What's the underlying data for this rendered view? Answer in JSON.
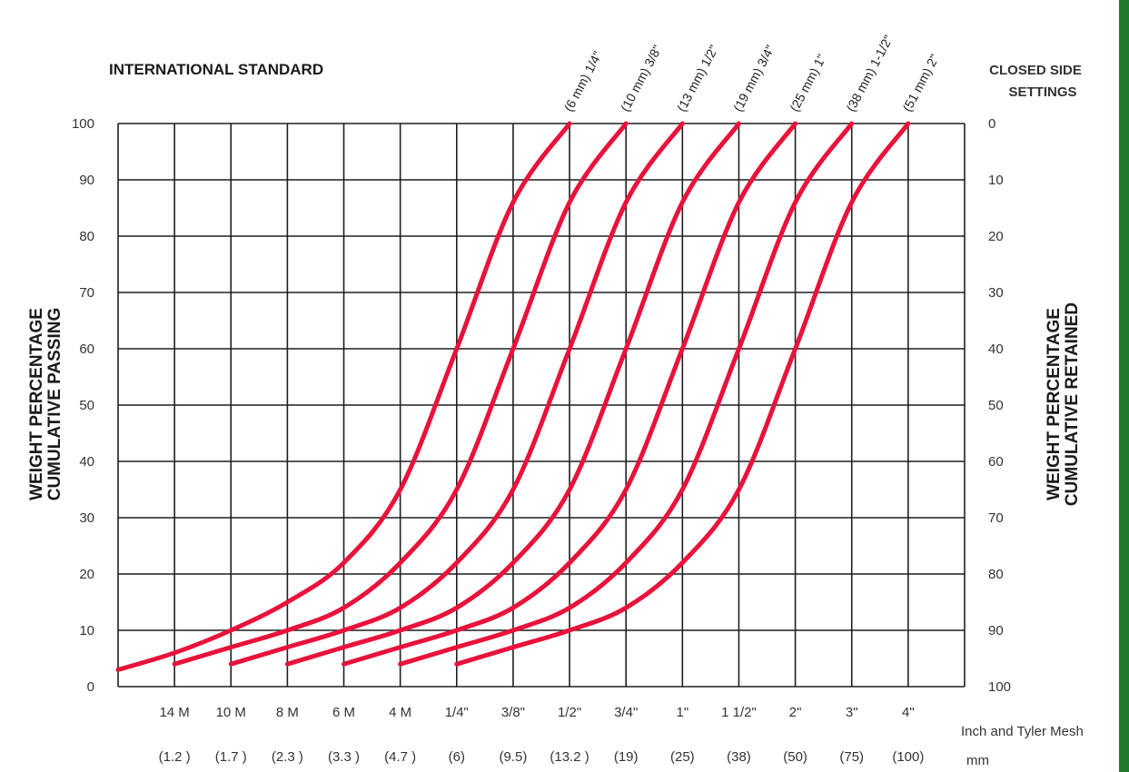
{
  "chart_data": {
    "type": "line",
    "title": "INTERNATIONAL STANDARD",
    "right_title": [
      "CLOSED SIDE",
      "SETTINGS"
    ],
    "ylabel": [
      "WEIGHT PERCENTAGE",
      "CUMULATIVE PASSING"
    ],
    "ylabel_right": [
      "WEIGHT PERCENTAGE",
      "CUMULATIVE RETAINED"
    ],
    "ylim": [
      0,
      100
    ],
    "y_ticks": [
      0,
      10,
      20,
      30,
      40,
      50,
      60,
      70,
      80,
      90,
      100
    ],
    "y_ticks_right": [
      100,
      90,
      80,
      70,
      60,
      50,
      40,
      30,
      20,
      10,
      0
    ],
    "x_tick_labels": [
      "14 M",
      "10 M",
      "8 M",
      "6 M",
      "4 M",
      "1/4\"",
      "3/8\"",
      "1/2\"",
      "3/4\"",
      "1\"",
      "1 1/2\"",
      "2\"",
      "3\"",
      "4\""
    ],
    "x_tick_labels_mm": [
      "(1.2 )",
      "(1.7 )",
      "(2.3 )",
      "(3.3 )",
      "(4.7 )",
      "(6)",
      "(9.5)",
      "(13.2 )",
      "(19)",
      "(25)",
      "(38)",
      "(50)",
      "(75)",
      "(100)"
    ],
    "x_unit_inch": "Inch and Tyler Mesh",
    "x_unit_mm": "mm",
    "grid": true,
    "series": [
      {
        "name": "(6 mm) 1/4\"",
        "x": [
          0,
          1,
          2,
          3,
          4,
          5,
          6,
          7,
          8
        ],
        "y": [
          3,
          6,
          10,
          15,
          22,
          35,
          60,
          86,
          100
        ]
      },
      {
        "name": "(10 mm) 3/8\"",
        "x": [
          1,
          2,
          3,
          4,
          5,
          6,
          7,
          8,
          9
        ],
        "y": [
          4,
          7,
          10,
          14,
          22,
          35,
          60,
          86,
          100
        ]
      },
      {
        "name": "(13 mm) 1/2\"",
        "x": [
          2,
          3,
          4,
          5,
          6,
          7,
          8,
          9,
          10
        ],
        "y": [
          4,
          7,
          10,
          14,
          22,
          35,
          60,
          86,
          100
        ]
      },
      {
        "name": "(19 mm) 3/4\"",
        "x": [
          3,
          4,
          5,
          6,
          7,
          8,
          9,
          10,
          11
        ],
        "y": [
          4,
          7,
          10,
          14,
          22,
          35,
          60,
          86,
          100
        ]
      },
      {
        "name": "(25 mm) 1\"",
        "x": [
          4,
          5,
          6,
          7,
          8,
          9,
          10,
          11,
          12
        ],
        "y": [
          4,
          7,
          10,
          14,
          22,
          35,
          60,
          86,
          100
        ]
      },
      {
        "name": "(38 mm) 1-1/2\"",
        "x": [
          5,
          6,
          7,
          8,
          9,
          10,
          11,
          12,
          13
        ],
        "y": [
          4,
          7,
          10,
          14,
          22,
          35,
          60,
          86,
          100
        ]
      },
      {
        "name": "(51 mm) 2\"",
        "x": [
          6,
          7,
          8,
          9,
          10,
          11,
          12,
          13,
          14
        ],
        "y": [
          4,
          7,
          10,
          14,
          22,
          35,
          60,
          86,
          100
        ]
      }
    ],
    "colors": {
      "curve": "#e8123a",
      "grid": "#1f1f1f",
      "edge": "#1d7a2b"
    }
  }
}
